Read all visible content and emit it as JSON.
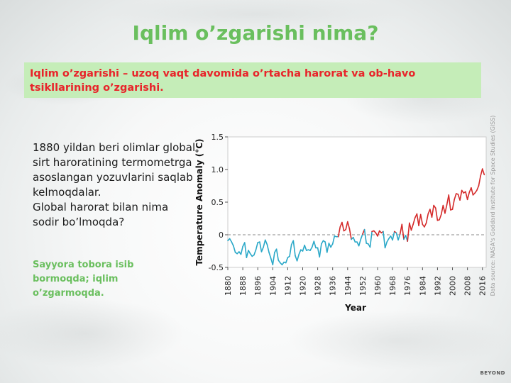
{
  "slide": {
    "title": "Iqlim o’zgarishi nima?",
    "definition": "Iqlim o’zgarishi – uzoq vaqt davomida o’rtacha harorat va ob-havo tsikllarining o’zgarishi.",
    "left_text": "1880 yildan beri olimlar global sirt haroratining termometrga asoslangan yozuvlarini saqlab kelmoqdalar.\n Global harorat bilan nima sodir bo’lmoqda?",
    "left_note": "Sayyora tobora isib bormoqda;  iqlim o’zgarmoqda.",
    "source": "Data source: NASA's Goddard Institute for Space Studies (GISS)",
    "brand": "BEYOND",
    "colors": {
      "title": "#6abf5e",
      "definition_bg": "#c5edb8",
      "definition_text": "#e8242a",
      "negative_series": "#2aa8c8",
      "positive_series": "#d42a2a"
    }
  },
  "chart_data": {
    "type": "line",
    "xlabel": "Year",
    "ylabel": "Temperature Anomaly (°C)",
    "xlim": [
      1880,
      2018
    ],
    "ylim": [
      -0.5,
      1.5
    ],
    "y_ticks": [
      1.5,
      1.0,
      0.5,
      0,
      -0.5
    ],
    "y_tick_labels": [
      "1.5",
      "1.0",
      "0.5",
      "0",
      "-0.5"
    ],
    "x_ticks": [
      1880,
      1888,
      1896,
      1904,
      1912,
      1920,
      1928,
      1936,
      1944,
      1952,
      1960,
      1968,
      1976,
      1984,
      1992,
      2000,
      2008,
      2016
    ],
    "zero_line": "dashed",
    "series": [
      {
        "x": [
          1880,
          1881,
          1882,
          1883,
          1884,
          1885,
          1886,
          1887,
          1888,
          1889,
          1890,
          1891,
          1892,
          1893,
          1894,
          1895,
          1896,
          1897,
          1898,
          1899,
          1900,
          1901,
          1902,
          1903,
          1904,
          1905,
          1906,
          1907,
          1908,
          1909,
          1910,
          1911,
          1912,
          1913,
          1914,
          1915,
          1916,
          1917,
          1918,
          1919,
          1920,
          1921,
          1922,
          1923,
          1924,
          1925,
          1926,
          1927,
          1928,
          1929,
          1930,
          1931,
          1932,
          1933,
          1934,
          1935,
          1936,
          1937,
          1938,
          1939,
          1940,
          1941,
          1942,
          1943,
          1944,
          1945,
          1946,
          1947,
          1948,
          1949,
          1950,
          1951,
          1952,
          1953,
          1954,
          1955,
          1956,
          1957,
          1958,
          1959,
          1960,
          1961,
          1962,
          1963,
          1964,
          1965,
          1966,
          1967,
          1968,
          1969,
          1970,
          1971,
          1972,
          1973,
          1974,
          1975,
          1976,
          1977,
          1978,
          1979,
          1980,
          1981,
          1982,
          1983,
          1984,
          1985,
          1986,
          1987,
          1988,
          1989,
          1990,
          1991,
          1992,
          1993,
          1994,
          1995,
          1996,
          1997,
          1998,
          1999,
          2000,
          2001,
          2002,
          2003,
          2004,
          2005,
          2006,
          2007,
          2008,
          2009,
          2010,
          2011,
          2012,
          2013,
          2014,
          2015,
          2016,
          2017
        ],
        "values": [
          -0.09,
          -0.06,
          -0.11,
          -0.17,
          -0.27,
          -0.29,
          -0.26,
          -0.3,
          -0.18,
          -0.12,
          -0.35,
          -0.24,
          -0.29,
          -0.33,
          -0.31,
          -0.23,
          -0.12,
          -0.11,
          -0.26,
          -0.19,
          -0.08,
          -0.15,
          -0.27,
          -0.36,
          -0.46,
          -0.27,
          -0.22,
          -0.39,
          -0.43,
          -0.46,
          -0.42,
          -0.43,
          -0.35,
          -0.33,
          -0.15,
          -0.09,
          -0.32,
          -0.4,
          -0.3,
          -0.23,
          -0.25,
          -0.16,
          -0.24,
          -0.23,
          -0.24,
          -0.19,
          -0.1,
          -0.2,
          -0.2,
          -0.34,
          -0.14,
          -0.09,
          -0.11,
          -0.27,
          -0.13,
          -0.19,
          -0.14,
          -0.02,
          -0.03,
          -0.03,
          0.12,
          0.19,
          0.06,
          0.08,
          0.2,
          0.09,
          -0.07,
          -0.04,
          -0.11,
          -0.11,
          -0.17,
          -0.07,
          0.01,
          0.08,
          -0.13,
          -0.14,
          -0.19,
          0.05,
          0.06,
          0.03,
          -0.02,
          0.06,
          0.03,
          0.05,
          -0.2,
          -0.11,
          -0.06,
          -0.02,
          -0.08,
          0.05,
          0.03,
          -0.08,
          0.01,
          0.16,
          -0.07,
          -0.01,
          -0.1,
          0.18,
          0.07,
          0.16,
          0.26,
          0.32,
          0.14,
          0.31,
          0.16,
          0.12,
          0.18,
          0.32,
          0.39,
          0.27,
          0.45,
          0.41,
          0.22,
          0.23,
          0.31,
          0.45,
          0.33,
          0.46,
          0.61,
          0.38,
          0.39,
          0.54,
          0.63,
          0.62,
          0.53,
          0.68,
          0.64,
          0.66,
          0.54,
          0.65,
          0.72,
          0.61,
          0.64,
          0.68,
          0.75,
          0.9,
          1.01,
          0.92
        ]
      }
    ]
  }
}
